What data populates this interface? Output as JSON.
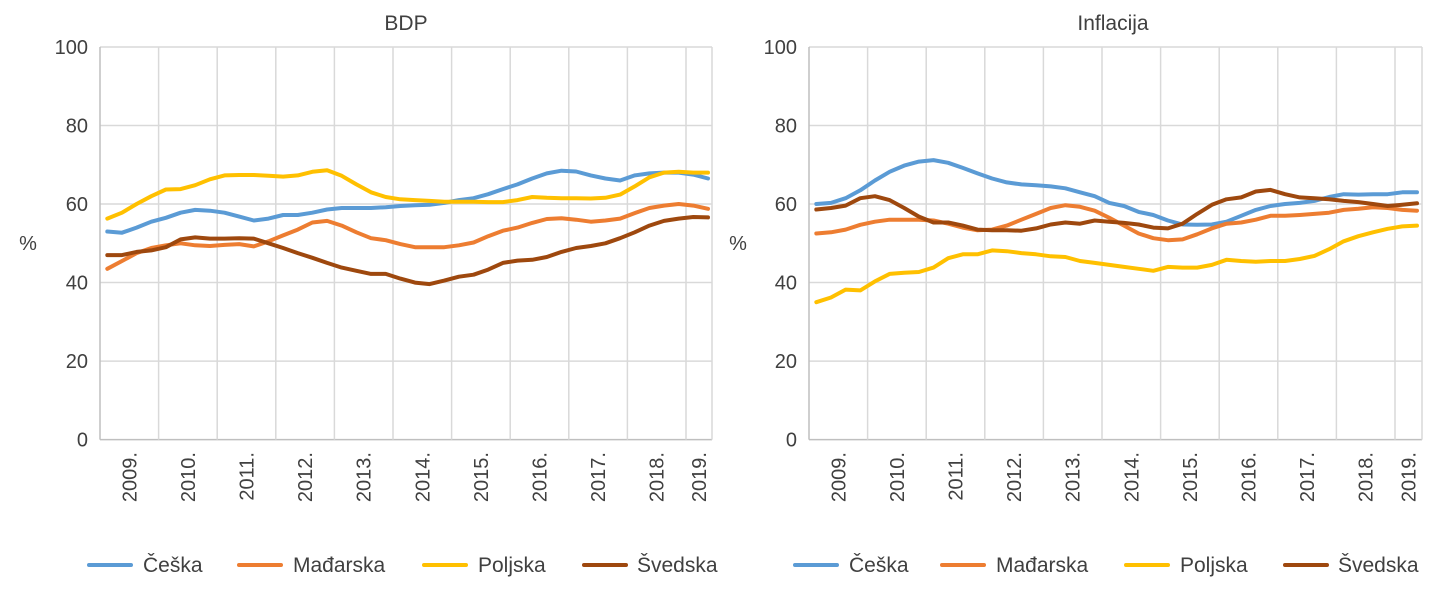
{
  "colors": {
    "Češka": "#5B9BD5",
    "Mađarska": "#ED7D31",
    "Poljska": "#FFC000",
    "Švedska": "#9E480E"
  },
  "chart_data": [
    {
      "type": "line",
      "title": "BDP",
      "ylabel": "%",
      "xlabel": "",
      "ylim": [
        0,
        100
      ],
      "yticks": [
        "0",
        "20",
        "40",
        "60",
        "80",
        "100"
      ],
      "x_tick_labels": [
        "2009.",
        "2010.",
        "2011.",
        "2012.",
        "2013.",
        "2014.",
        "2015.",
        "2016.",
        "2017.",
        "2018.",
        "2019."
      ],
      "x_frequency": "quarterly, 2009 Q1 – 2019 Q2",
      "grid": true,
      "legend": "bottom",
      "series": [
        {
          "name": "Češka",
          "values": [
            53,
            52.7,
            54,
            55.5,
            56.5,
            57.8,
            58.5,
            58.3,
            57.8,
            56.8,
            55.8,
            56.3,
            57.2,
            57.2,
            57.8,
            58.6,
            59,
            59,
            59,
            59.2,
            59.5,
            59.7,
            59.8,
            60.3,
            61,
            61.5,
            62.5,
            63.8,
            65,
            66.5,
            67.8,
            68.5,
            68.3,
            67.3,
            66.5,
            66,
            67.3,
            67.8,
            68,
            68,
            67.5,
            66.5
          ]
        },
        {
          "name": "Mađarska",
          "values": [
            43.5,
            45.5,
            47.5,
            48.8,
            49.5,
            50,
            49.5,
            49.3,
            49.6,
            49.8,
            49.2,
            50.5,
            52,
            53.5,
            55.3,
            55.7,
            54.5,
            52.8,
            51.3,
            50.8,
            49.8,
            49,
            49,
            49,
            49.5,
            50.2,
            51.8,
            53.2,
            54,
            55.2,
            56.2,
            56.4,
            56,
            55.5,
            55.8,
            56.3,
            57.7,
            59,
            59.6,
            60,
            59.6,
            58.8
          ]
        },
        {
          "name": "Poljska",
          "values": [
            56.3,
            57.8,
            60,
            62,
            63.7,
            63.8,
            64.8,
            66.3,
            67.3,
            67.4,
            67.4,
            67.2,
            67,
            67.3,
            68.2,
            68.6,
            67.2,
            65,
            63,
            61.8,
            61.2,
            61,
            60.8,
            60.6,
            60.6,
            60.6,
            60.5,
            60.5,
            61,
            61.8,
            61.6,
            61.5,
            61.5,
            61.4,
            61.6,
            62.4,
            64.5,
            66.8,
            68,
            68.2,
            68,
            68
          ]
        },
        {
          "name": "Švedska",
          "values": [
            47,
            47,
            47.8,
            48.2,
            49,
            51,
            51.5,
            51.2,
            51.2,
            51.3,
            51.2,
            50,
            48.8,
            47.5,
            46.3,
            45,
            43.8,
            43,
            42.2,
            42.2,
            41,
            40,
            39.6,
            40.5,
            41.5,
            42,
            43.3,
            45,
            45.6,
            45.8,
            46.5,
            47.8,
            48.8,
            49.3,
            50,
            51.3,
            52.8,
            54.5,
            55.7,
            56.3,
            56.7,
            56.6
          ]
        }
      ]
    },
    {
      "type": "line",
      "title": "Inflacija",
      "ylabel": "%",
      "xlabel": "",
      "ylim": [
        0,
        100
      ],
      "yticks": [
        "0",
        "20",
        "40",
        "60",
        "80",
        "100"
      ],
      "x_tick_labels": [
        "2009.",
        "2010.",
        "2011.",
        "2012.",
        "2013.",
        "2014.",
        "2015.",
        "2016.",
        "2017.",
        "2018.",
        "2019."
      ],
      "x_frequency": "quarterly, 2009 Q1 – 2019 Q2",
      "grid": true,
      "legend": "bottom",
      "series": [
        {
          "name": "Češka",
          "values": [
            60,
            60.3,
            61.5,
            63.5,
            66,
            68.2,
            69.8,
            70.8,
            71.2,
            70.5,
            69.2,
            67.8,
            66.5,
            65.5,
            65,
            64.8,
            64.5,
            64,
            63,
            62,
            60.3,
            59.5,
            58,
            57.2,
            55.8,
            54.8,
            54.7,
            54.8,
            55.5,
            57,
            58.5,
            59.5,
            60,
            60.3,
            60.8,
            61.8,
            62.5,
            62.4,
            62.5,
            62.5,
            63,
            63
          ]
        },
        {
          "name": "Mađarska",
          "values": [
            52.5,
            52.8,
            53.5,
            54.7,
            55.5,
            56,
            56,
            56,
            55.8,
            55,
            54,
            53.3,
            53.5,
            54.5,
            56,
            57.5,
            59,
            59.7,
            59.3,
            58.3,
            56.5,
            54.5,
            52.5,
            51.3,
            50.8,
            51,
            52.3,
            53.8,
            55,
            55.3,
            56,
            57,
            57,
            57.2,
            57.5,
            57.8,
            58.5,
            58.8,
            59.2,
            59,
            58.5,
            58.3
          ]
        },
        {
          "name": "Poljska",
          "values": [
            35,
            36.2,
            38.2,
            38,
            40.3,
            42.2,
            42.5,
            42.7,
            43.8,
            46.2,
            47.2,
            47.2,
            48.2,
            48,
            47.5,
            47.2,
            46.7,
            46.5,
            45.5,
            45,
            44.5,
            44,
            43.5,
            43,
            44,
            43.8,
            43.8,
            44.5,
            45.8,
            45.5,
            45.3,
            45.5,
            45.5,
            46,
            46.8,
            48.5,
            50.5,
            51.8,
            52.8,
            53.7,
            54.3,
            54.5
          ]
        },
        {
          "name": "Švedska",
          "values": [
            58.6,
            59,
            59.6,
            61.5,
            62,
            61,
            59,
            56.8,
            55.3,
            55.3,
            54.5,
            53.5,
            53.3,
            53.3,
            53.2,
            53.8,
            54.8,
            55.3,
            55,
            55.8,
            55.5,
            55.2,
            54.8,
            54,
            53.8,
            55,
            57.5,
            59.8,
            61.2,
            61.7,
            63.2,
            63.6,
            62.5,
            61.7,
            61.5,
            61.2,
            60.8,
            60.5,
            60,
            59.5,
            59.8,
            60.2
          ]
        }
      ]
    }
  ]
}
